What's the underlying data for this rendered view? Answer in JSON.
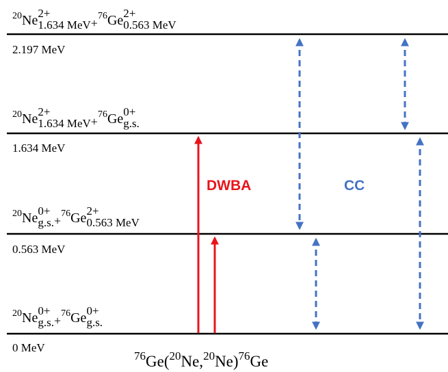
{
  "levels": [
    {
      "state": {
        "nucleus1": {
          "mass": "20",
          "symbol": "Ne",
          "spin": "2+",
          "state": "1.634 MeV"
        },
        "joiner": "+",
        "nucleus2": {
          "mass": "76",
          "symbol": "Ge",
          "spin": "2+",
          "state": "0.563 MeV"
        }
      },
      "energy": "2.197 MeV"
    },
    {
      "state": {
        "nucleus1": {
          "mass": "20",
          "symbol": "Ne",
          "spin": "2+",
          "state": "1.634 MeV"
        },
        "joiner": "+",
        "nucleus2": {
          "mass": "76",
          "symbol": "Ge",
          "spin": "0+",
          "state": "g.s."
        }
      },
      "energy": "1.634 MeV"
    },
    {
      "state": {
        "nucleus1": {
          "mass": "20",
          "symbol": "Ne",
          "spin": "0+",
          "state": "g.s."
        },
        "joiner": "+",
        "nucleus2": {
          "mass": "76",
          "symbol": "Ge",
          "spin": "2+",
          "state": "0.563 MeV"
        }
      },
      "energy": "0.563 MeV"
    },
    {
      "state": {
        "nucleus1": {
          "mass": "20",
          "symbol": "Ne",
          "spin": "0+",
          "state": "g.s."
        },
        "joiner": "+",
        "nucleus2": {
          "mass": "76",
          "symbol": "Ge",
          "spin": "0+",
          "state": "g.s."
        }
      },
      "energy": "0 MeV"
    }
  ],
  "labels": {
    "dwba": "DWBA",
    "cc": "CC"
  },
  "reaction": [
    {
      "sup": "76"
    },
    {
      "text": "Ge("
    },
    {
      "sup": "20"
    },
    {
      "text": "Ne,"
    },
    {
      "sup": "20"
    },
    {
      "text": "Ne)"
    },
    {
      "sup": "76"
    },
    {
      "text": "Ge"
    }
  ]
}
